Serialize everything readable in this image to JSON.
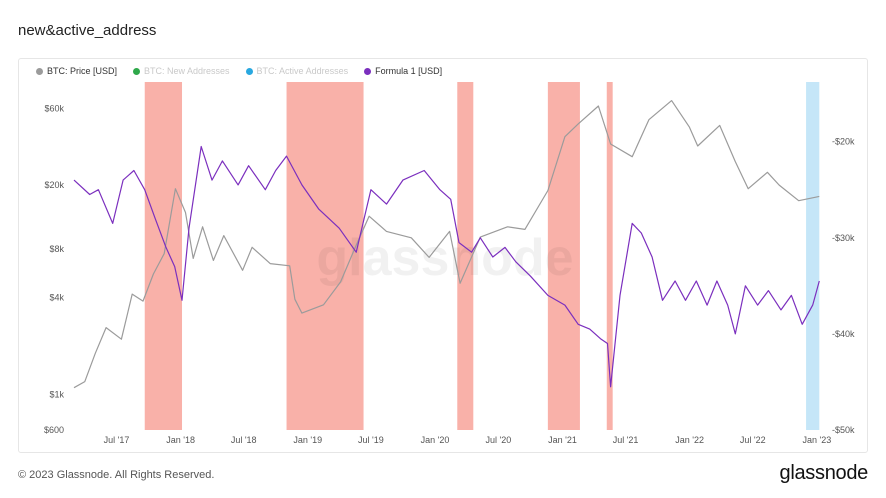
{
  "title": "new&active_address",
  "legend": [
    {
      "name": "BTC: Price [USD]",
      "color": "#9b9b9b",
      "active": true
    },
    {
      "name": "BTC: New Addresses",
      "color": "#2ea84a",
      "active": false
    },
    {
      "name": "BTC: Active Addresses",
      "color": "#29a8e0",
      "active": false
    },
    {
      "name": "Formula 1 [USD]",
      "color": "#7b2fbe",
      "active": true
    }
  ],
  "watermark": "glassnode",
  "footer": "© 2023 Glassnode. All Rights Reserved.",
  "brand": "glassnode",
  "chart_data": {
    "type": "line",
    "x_range": [
      "2017-03-01",
      "2023-01-10"
    ],
    "x_ticks": [
      "Jul '17",
      "Jan '18",
      "Jul '18",
      "Jan '19",
      "Jul '19",
      "Jan '20",
      "Jul '20",
      "Jan '21",
      "Jul '21",
      "Jan '22",
      "Jul '22",
      "Jan '23"
    ],
    "left_axis": {
      "scale": "log",
      "ticks": [
        "$60k",
        "$20k",
        "$8k",
        "$4k",
        "$1k",
        "$600"
      ],
      "range": [
        600,
        85000
      ]
    },
    "right_axis": {
      "ticks": [
        "-$20k",
        "-$30k",
        "-$40k",
        "-$50k"
      ],
      "range": [
        -50000,
        -14000
      ]
    },
    "highlight_bands": [
      {
        "start": "2017-09-20",
        "end": "2018-01-05",
        "color": "#f8a8a0"
      },
      {
        "start": "2018-11-01",
        "end": "2019-06-10",
        "color": "#f8a8a0"
      },
      {
        "start": "2020-03-05",
        "end": "2020-04-20",
        "color": "#f8a8a0"
      },
      {
        "start": "2020-11-20",
        "end": "2021-02-20",
        "color": "#f8a8a0"
      },
      {
        "start": "2021-05-08",
        "end": "2021-05-25",
        "color": "#f8a8a0"
      },
      {
        "start": "2022-12-01",
        "end": "2023-01-08",
        "color": "#bfe3f7"
      }
    ],
    "series": [
      {
        "name": "BTC: Price [USD]",
        "color": "#9b9b9b",
        "axis": "left",
        "points": [
          [
            "2017-03-01",
            1100
          ],
          [
            "2017-04-01",
            1200
          ],
          [
            "2017-05-01",
            1800
          ],
          [
            "2017-06-01",
            2600
          ],
          [
            "2017-07-15",
            2200
          ],
          [
            "2017-08-15",
            4200
          ],
          [
            "2017-09-15",
            3800
          ],
          [
            "2017-10-15",
            5600
          ],
          [
            "2017-11-15",
            7500
          ],
          [
            "2017-12-17",
            19000
          ],
          [
            "2018-01-15",
            13500
          ],
          [
            "2018-02-06",
            7000
          ],
          [
            "2018-03-05",
            11000
          ],
          [
            "2018-04-05",
            6800
          ],
          [
            "2018-05-05",
            9700
          ],
          [
            "2018-06-28",
            5900
          ],
          [
            "2018-07-25",
            8200
          ],
          [
            "2018-09-15",
            6500
          ],
          [
            "2018-11-10",
            6300
          ],
          [
            "2018-11-25",
            3900
          ],
          [
            "2018-12-15",
            3200
          ],
          [
            "2019-02-15",
            3600
          ],
          [
            "2019-04-05",
            5000
          ],
          [
            "2019-05-15",
            8000
          ],
          [
            "2019-06-26",
            12800
          ],
          [
            "2019-08-15",
            10300
          ],
          [
            "2019-10-25",
            9400
          ],
          [
            "2019-12-15",
            7100
          ],
          [
            "2020-02-12",
            10300
          ],
          [
            "2020-03-13",
            4900
          ],
          [
            "2020-05-10",
            9500
          ],
          [
            "2020-07-27",
            11000
          ],
          [
            "2020-09-15",
            10600
          ],
          [
            "2020-11-20",
            18500
          ],
          [
            "2021-01-08",
            40000
          ],
          [
            "2021-02-15",
            48000
          ],
          [
            "2021-04-14",
            62000
          ],
          [
            "2021-05-19",
            36000
          ],
          [
            "2021-07-20",
            30000
          ],
          [
            "2021-09-06",
            51000
          ],
          [
            "2021-11-10",
            67000
          ],
          [
            "2021-12-31",
            46000
          ],
          [
            "2022-01-24",
            35000
          ],
          [
            "2022-03-28",
            47000
          ],
          [
            "2022-05-12",
            28000
          ],
          [
            "2022-06-18",
            19000
          ],
          [
            "2022-08-12",
            24000
          ],
          [
            "2022-09-15",
            20000
          ],
          [
            "2022-11-10",
            16000
          ],
          [
            "2023-01-08",
            17000
          ]
        ]
      },
      {
        "name": "Formula 1 [USD]",
        "color": "#7b2fbe",
        "axis": "right",
        "points": [
          [
            "2017-03-01",
            -24000
          ],
          [
            "2017-04-15",
            -25500
          ],
          [
            "2017-05-10",
            -25000
          ],
          [
            "2017-06-20",
            -28500
          ],
          [
            "2017-07-20",
            -24000
          ],
          [
            "2017-08-20",
            -23000
          ],
          [
            "2017-09-20",
            -25000
          ],
          [
            "2017-10-20",
            -28000
          ],
          [
            "2017-11-20",
            -31000
          ],
          [
            "2017-12-15",
            -33000
          ],
          [
            "2018-01-05",
            -36500
          ],
          [
            "2018-01-25",
            -29000
          ],
          [
            "2018-03-01",
            -20500
          ],
          [
            "2018-04-01",
            -24000
          ],
          [
            "2018-05-01",
            -22000
          ],
          [
            "2018-06-15",
            -24500
          ],
          [
            "2018-07-15",
            -22500
          ],
          [
            "2018-09-01",
            -25000
          ],
          [
            "2018-10-01",
            -23000
          ],
          [
            "2018-11-01",
            -21500
          ],
          [
            "2018-12-15",
            -24500
          ],
          [
            "2019-02-01",
            -27000
          ],
          [
            "2019-04-01",
            -29000
          ],
          [
            "2019-05-20",
            -31500
          ],
          [
            "2019-07-01",
            -25000
          ],
          [
            "2019-08-15",
            -26500
          ],
          [
            "2019-10-01",
            -24000
          ],
          [
            "2019-12-01",
            -23000
          ],
          [
            "2020-01-15",
            -25000
          ],
          [
            "2020-02-15",
            -26000
          ],
          [
            "2020-03-10",
            -30500
          ],
          [
            "2020-04-15",
            -31500
          ],
          [
            "2020-05-10",
            -30000
          ],
          [
            "2020-06-15",
            -32000
          ],
          [
            "2020-07-20",
            -31000
          ],
          [
            "2020-08-20",
            -32500
          ],
          [
            "2020-10-01",
            -34000
          ],
          [
            "2020-11-20",
            -36000
          ],
          [
            "2021-01-08",
            -37000
          ],
          [
            "2021-02-15",
            -39000
          ],
          [
            "2021-03-20",
            -39500
          ],
          [
            "2021-04-20",
            -40500
          ],
          [
            "2021-05-10",
            -41000
          ],
          [
            "2021-05-19",
            -45500
          ],
          [
            "2021-06-15",
            -36000
          ],
          [
            "2021-07-20",
            -28500
          ],
          [
            "2021-08-15",
            -29500
          ],
          [
            "2021-09-15",
            -32000
          ],
          [
            "2021-10-15",
            -36500
          ],
          [
            "2021-11-20",
            -34500
          ],
          [
            "2021-12-20",
            -36500
          ],
          [
            "2022-01-20",
            -34500
          ],
          [
            "2022-02-20",
            -37000
          ],
          [
            "2022-03-20",
            -34500
          ],
          [
            "2022-04-20",
            -37000
          ],
          [
            "2022-05-12",
            -40000
          ],
          [
            "2022-06-10",
            -35000
          ],
          [
            "2022-07-15",
            -37000
          ],
          [
            "2022-08-15",
            -35500
          ],
          [
            "2022-09-20",
            -37500
          ],
          [
            "2022-10-20",
            -36000
          ],
          [
            "2022-11-20",
            -39000
          ],
          [
            "2022-12-20",
            -37000
          ],
          [
            "2023-01-08",
            -34500
          ]
        ]
      }
    ]
  }
}
